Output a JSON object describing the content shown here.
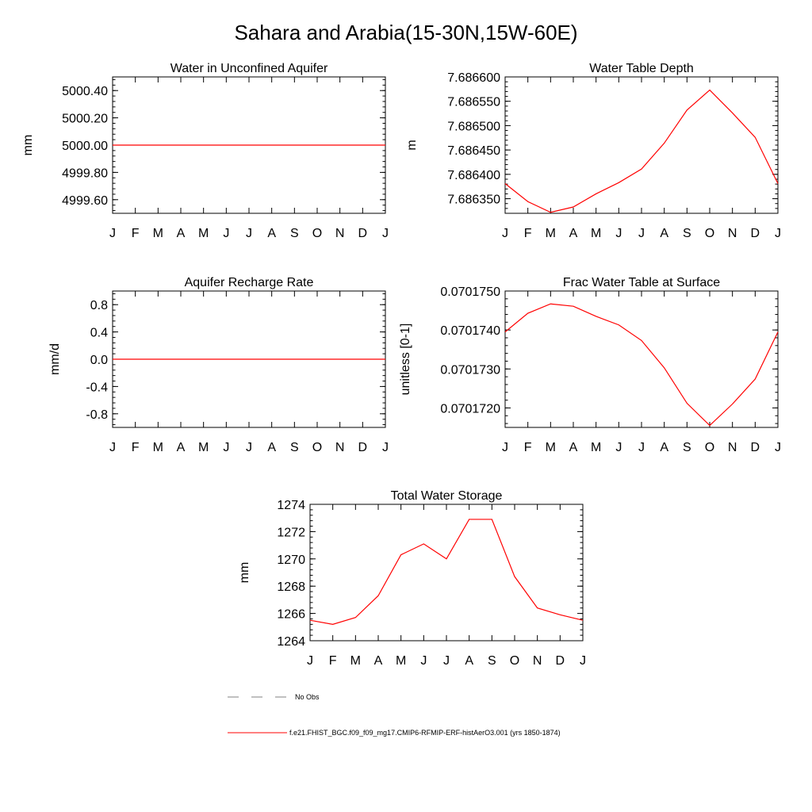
{
  "figure": {
    "title": "Sahara and Arabia(15-30N,15W-60E)",
    "line_color": "#ff0000",
    "legend": {
      "obs_label": "No Obs",
      "obs_color": "#808080",
      "model_label": "f.e21.FHIST_BGC.f09_f09_mg17.CMIP6-RFMIP-ERF-histAerO3.001 (yrs 1850-1874)",
      "model_color": "#ff0000"
    }
  },
  "chart_data": [
    {
      "type": "line",
      "title": "Water in Unconfined Aquifer",
      "ylabel": "mm",
      "x": [
        "J",
        "F",
        "M",
        "A",
        "M",
        "J",
        "J",
        "A",
        "S",
        "O",
        "N",
        "D",
        "J"
      ],
      "ylim": [
        4999.5,
        5000.5
      ],
      "yticks": [
        4999.6,
        4999.8,
        5000.0,
        5000.2,
        5000.4
      ],
      "ytick_labels": [
        "4999.60",
        "4999.80",
        "5000.00",
        "5000.20",
        "5000.40"
      ],
      "series": [
        {
          "values": [
            5000,
            5000,
            5000,
            5000,
            5000,
            5000,
            5000,
            5000,
            5000,
            5000,
            5000,
            5000,
            5000
          ]
        }
      ]
    },
    {
      "type": "line",
      "title": "Water Table Depth",
      "ylabel": "m",
      "x": [
        "J",
        "F",
        "M",
        "A",
        "M",
        "J",
        "J",
        "A",
        "S",
        "O",
        "N",
        "D",
        "J"
      ],
      "ylim": [
        7.68632,
        7.6866
      ],
      "yticks": [
        7.68635,
        7.6864,
        7.68645,
        7.6865,
        7.68655,
        7.6866
      ],
      "ytick_labels": [
        "7.686350",
        "7.686400",
        "7.686450",
        "7.686500",
        "7.686550",
        "7.686600"
      ],
      "series": [
        {
          "values": [
            7.686381,
            7.686344,
            7.686322,
            7.686333,
            7.68636,
            7.686383,
            7.686411,
            7.686464,
            7.686532,
            7.686573,
            7.686526,
            7.686476,
            7.686381
          ]
        }
      ]
    },
    {
      "type": "line",
      "title": "Aquifer Recharge Rate",
      "ylabel": "mm/d",
      "x": [
        "J",
        "F",
        "M",
        "A",
        "M",
        "J",
        "J",
        "A",
        "S",
        "O",
        "N",
        "D",
        "J"
      ],
      "ylim": [
        -1.0,
        1.0
      ],
      "yticks": [
        -0.8,
        -0.4,
        0.0,
        0.4,
        0.8
      ],
      "ytick_labels": [
        "-0.8",
        "-0.4",
        "0.0",
        "0.4",
        "0.8"
      ],
      "series": [
        {
          "values": [
            0,
            0,
            0,
            0,
            0,
            0,
            0,
            0,
            0,
            0,
            0,
            0,
            0
          ]
        }
      ]
    },
    {
      "type": "line",
      "title": "Frac Water Table at Surface",
      "ylabel": "unitless [0-1]",
      "x": [
        "J",
        "F",
        "M",
        "A",
        "M",
        "J",
        "J",
        "A",
        "S",
        "O",
        "N",
        "D",
        "J"
      ],
      "ylim": [
        0.0701715,
        0.070175
      ],
      "yticks": [
        0.070172,
        0.070173,
        0.070174,
        0.070175
      ],
      "ytick_labels": [
        "0.0701720",
        "0.0701730",
        "0.0701740",
        "0.0701750"
      ],
      "series": [
        {
          "values": [
            0.07017395,
            0.07017443,
            0.07017467,
            0.07017461,
            0.07017435,
            0.07017413,
            0.07017373,
            0.07017303,
            0.07017212,
            0.07017155,
            0.0701721,
            0.07017274,
            0.07017395
          ]
        }
      ]
    },
    {
      "type": "line",
      "title": "Total Water Storage",
      "ylabel": "mm",
      "x": [
        "J",
        "F",
        "M",
        "A",
        "M",
        "J",
        "J",
        "A",
        "S",
        "O",
        "N",
        "D",
        "J"
      ],
      "ylim": [
        1264,
        1274
      ],
      "yticks": [
        1264,
        1266,
        1268,
        1270,
        1272,
        1274
      ],
      "ytick_labels": [
        "1264",
        "1266",
        "1268",
        "1270",
        "1272",
        "1274"
      ],
      "series": [
        {
          "values": [
            1265.5,
            1265.2,
            1265.7,
            1267.3,
            1270.3,
            1271.1,
            1270.0,
            1272.9,
            1272.9,
            1268.7,
            1266.4,
            1265.9,
            1265.5
          ]
        }
      ]
    }
  ]
}
